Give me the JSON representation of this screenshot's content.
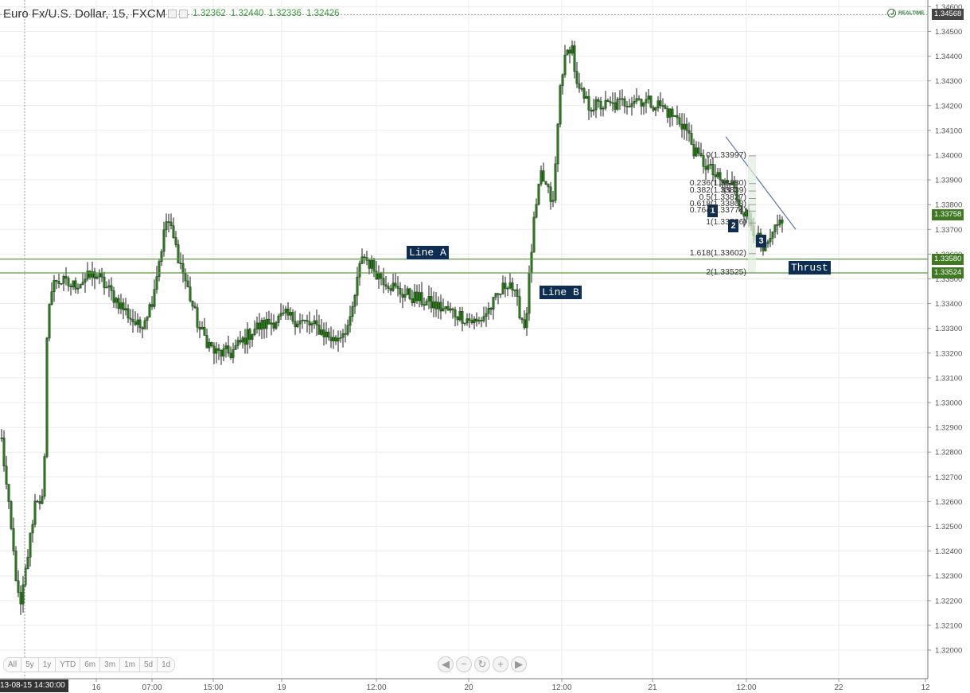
{
  "header": {
    "title": "Euro Fx/U.S. Dollar, 15, FXCM",
    "open": "1.32362",
    "high": "1.32440",
    "low": "1.32336",
    "close": "1.32426",
    "realtime_label": "REALTIME"
  },
  "colors": {
    "candle": "#2f7a1f",
    "wick": "#1b1b1b",
    "support_lines": "#5c9a43",
    "trendline": "#5575a8",
    "tag_bg": "#0d2d52",
    "last_price_badge": "#3f7a23"
  },
  "range_buttons": [
    "All",
    "5y",
    "1y",
    "YTD",
    "6m",
    "3m",
    "1m",
    "5d",
    "1d"
  ],
  "nav_buttons": [
    "scroll-left-icon",
    "zoom-out-icon",
    "reset-icon",
    "zoom-in-icon",
    "scroll-right-icon"
  ],
  "crosshair_time_label": "13-08-15 14:30:00",
  "annotations": {
    "line_a": "Line A",
    "line_b": "Line B",
    "thrust": "Thrust",
    "wave_1": "1",
    "wave_2": "2",
    "wave_3": "3"
  },
  "fib_labels": [
    {
      "text": "0(1.33997)",
      "price": 1.33997
    },
    {
      "text": "0.236(1.33880)",
      "price": 1.33885
    },
    {
      "text": "0.382(1.33839)",
      "price": 1.33855
    },
    {
      "text": "0.5(1.33827)",
      "price": 1.33825
    },
    {
      "text": "0.618(1.33803)",
      "price": 1.338
    },
    {
      "text": "0.764(1.33774)",
      "price": 1.33774
    },
    {
      "text": "1(1.33726)",
      "price": 1.33726
    },
    {
      "text": "1.618(1.33602)",
      "price": 1.33602
    },
    {
      "text": "2(1.33525)",
      "price": 1.33525
    }
  ],
  "price_badges": {
    "last_price": "1.33758",
    "line_a_price": "1.33580",
    "line_b_price": "1.33524",
    "crosshair_price": "1.34568"
  },
  "chart_data": {
    "type": "candlestick",
    "symbol": "Euro Fx/U.S. Dollar",
    "interval": "15",
    "source": "FXCM",
    "y_axis": {
      "ticks": [
        "1.32000",
        "1.32100",
        "1.32200",
        "1.32300",
        "1.32400",
        "1.32500",
        "1.32600",
        "1.32700",
        "1.32800",
        "1.32900",
        "1.33000",
        "1.33100",
        "1.33200",
        "1.33300",
        "1.33400",
        "1.33500",
        "1.33600",
        "1.33700",
        "1.33800",
        "1.33900",
        "1.34000",
        "1.34100",
        "1.34200",
        "1.34300",
        "1.34400",
        "1.34500",
        "1.34600"
      ],
      "range": [
        1.31932,
        1.34635
      ]
    },
    "x_axis": {
      "ticks": [
        "16",
        "07:00",
        "15:00",
        "19",
        "12:00",
        "20",
        "12:00",
        "21",
        "12:00",
        "22",
        "12"
      ]
    },
    "horizontal_lines": [
      {
        "label": "Line A",
        "price": 1.3358
      },
      {
        "label": "Line B",
        "price": 1.33524
      }
    ],
    "trendline": {
      "from_price": 1.34075,
      "to_price": 1.337
    },
    "grid": true,
    "close_path": [
      {
        "t": "13-08-15 14:30",
        "close": 1.3291
      },
      {
        "t": "13-08-15 15:45",
        "close": 1.326
      },
      {
        "t": "13-08-15 17:00",
        "close": 1.3215
      },
      {
        "t": "13-08-15 18:30",
        "close": 1.3262
      },
      {
        "t": "13-08-15 20:30",
        "close": 1.326
      },
      {
        "t": "13-08-15 21:30",
        "close": 1.334
      },
      {
        "t": "13-08-15 22:30",
        "close": 1.335
      },
      {
        "t": "14-08 01:00",
        "close": 1.3347
      },
      {
        "t": "14-08 05:00",
        "close": 1.3352
      },
      {
        "t": "14-08 09:00",
        "close": 1.334
      },
      {
        "t": "14-08 11:30",
        "close": 1.333
      },
      {
        "t": "14-08 14:00",
        "close": 1.334
      },
      {
        "t": "14-08 15:30",
        "close": 1.3375
      },
      {
        "t": "14-08 16:45",
        "close": 1.333
      },
      {
        "t": "14-08 18:30",
        "close": 1.332
      },
      {
        "t": "14-08 20:30",
        "close": 1.332
      },
      {
        "t": "14-08 22:30",
        "close": 1.333
      },
      {
        "t": "15-08 02:00",
        "close": 1.3335
      },
      {
        "t": "15-08 06:30",
        "close": 1.333
      },
      {
        "t": "15-08 12:00",
        "close": 1.3325
      },
      {
        "t": "15-08 14:00",
        "close": 1.3332
      },
      {
        "t": "15-08 15:45",
        "close": 1.336
      },
      {
        "t": "15-08 18:00",
        "close": 1.3352
      },
      {
        "t": "15-08 20:00",
        "close": 1.3345
      },
      {
        "t": "15-08 23:00",
        "close": 1.334
      },
      {
        "t": "16-08 03:00",
        "close": 1.3335
      },
      {
        "t": "16-08 08:00",
        "close": 1.3332
      },
      {
        "t": "16-08 11:00",
        "close": 1.334
      },
      {
        "t": "16-08 14:00",
        "close": 1.335
      },
      {
        "t": "16-08 16:00",
        "close": 1.333
      },
      {
        "t": "16-08 18:30",
        "close": 1.337
      },
      {
        "t": "16-08 20:00",
        "close": 1.3392
      },
      {
        "t": "16-08 21:30",
        "close": 1.338
      },
      {
        "t": "16-08 23:00",
        "close": 1.3433
      },
      {
        "t": "17-08 00:30",
        "close": 1.3446
      },
      {
        "t": "17-08 02:00",
        "close": 1.3427
      },
      {
        "t": "17-08 05:00",
        "close": 1.342
      },
      {
        "t": "17-08 10:00",
        "close": 1.342
      },
      {
        "t": "17-08 14:00",
        "close": 1.3423
      },
      {
        "t": "17-08 16:00",
        "close": 1.342
      },
      {
        "t": "17-08 18:30",
        "close": 1.3412
      },
      {
        "t": "17-08 20:00",
        "close": 1.34
      },
      {
        "t": "17-08 21:30",
        "close": 1.3395
      },
      {
        "t": "17-08 23:00",
        "close": 1.3389
      },
      {
        "t": "18-08 00:00",
        "close": 1.3388
      },
      {
        "t": "18-08 01:00",
        "close": 1.338
      },
      {
        "t": "18-08 02:15",
        "close": 1.3372
      },
      {
        "t": "18-08 03:00",
        "close": 1.336
      },
      {
        "t": "18-08 04:00",
        "close": 1.3376
      }
    ]
  }
}
